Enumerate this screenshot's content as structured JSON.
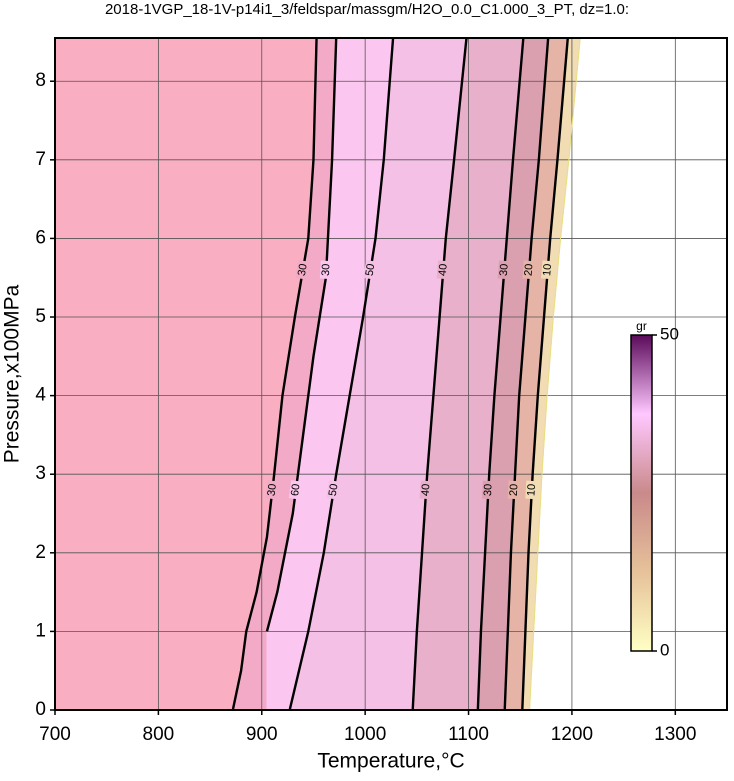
{
  "chart_data": {
    "type": "contour",
    "title": "2018-1VGP_18-1V-p14i1_3/feldspar/massgm/H2O_0.0_C1.000_3_PT, dz=1.0:",
    "xlabel": "Temperature,°C",
    "ylabel": "Pressure,x100MPa",
    "xlim": [
      700,
      1350
    ],
    "ylim": [
      0,
      8.55
    ],
    "xticks": [
      700,
      800,
      900,
      1000,
      1100,
      1200,
      1300
    ],
    "yticks": [
      0,
      1,
      2,
      3,
      4,
      5,
      6,
      7,
      8
    ],
    "grid": true,
    "contours": [
      {
        "labels": [
          30,
          30
        ],
        "T": [
          872,
          880,
          885,
          895,
          905,
          912,
          920,
          932,
          945,
          950,
          953
        ],
        "P": [
          0,
          0.5,
          1.0,
          1.5,
          2.2,
          3,
          4,
          5,
          6,
          7,
          8.55
        ]
      },
      {
        "labels": [
          30,
          60
        ],
        "T": [
          905,
          915,
          930,
          940,
          950,
          962,
          968,
          972
        ],
        "P": [
          1.0,
          1.5,
          2.5,
          3.5,
          4.5,
          5.5,
          7,
          8.55
        ]
      },
      {
        "labels": [
          50,
          50
        ],
        "T": [
          927,
          945,
          960,
          972,
          985,
          998,
          1010,
          1018,
          1027
        ],
        "P": [
          0,
          1,
          2,
          3,
          4,
          5,
          6,
          7,
          8.55
        ]
      },
      {
        "labels": [
          40,
          40
        ],
        "T": [
          1046,
          1050,
          1055,
          1060,
          1066,
          1072,
          1078,
          1086,
          1098
        ],
        "P": [
          0,
          1,
          2,
          3,
          4,
          5,
          6,
          7,
          8.55
        ]
      },
      {
        "labels": [
          30,
          30
        ],
        "T": [
          1109,
          1112,
          1116,
          1120,
          1125,
          1131,
          1137,
          1143,
          1153
        ],
        "P": [
          0,
          1,
          2,
          3,
          4,
          5,
          6,
          7,
          8.55
        ]
      },
      {
        "labels": [
          20,
          20
        ],
        "T": [
          1135,
          1138,
          1141,
          1145,
          1149,
          1155,
          1161,
          1168,
          1177
        ],
        "P": [
          0,
          1,
          2,
          3,
          4,
          5,
          6,
          7,
          8.55
        ]
      },
      {
        "labels": [
          10,
          10
        ],
        "T": [
          1152,
          1155,
          1158,
          1162,
          1167,
          1173,
          1179,
          1186,
          1196
        ],
        "P": [
          0,
          1,
          2,
          3,
          4,
          5,
          6,
          7,
          8.55
        ]
      }
    ],
    "edge": {
      "T": [
        1159,
        1163,
        1167,
        1171,
        1176,
        1182,
        1189,
        1197,
        1208
      ],
      "P": [
        0,
        1,
        2,
        3,
        4,
        5,
        6,
        7,
        8.55
      ]
    },
    "band_colors": [
      "#f9aec1",
      "#f2aac6",
      "#fbc6ef",
      "#f5c0e5",
      "#e8b0ca",
      "#dba0b0",
      "#e6b4a6",
      "#f1dcb4"
    ],
    "colorbar": {
      "label": "gr",
      "lim": [
        0,
        50
      ],
      "ticks": [
        0,
        50
      ],
      "colors": [
        "#ffffc4",
        "#e6c29a",
        "#c98a8a",
        "#ffc8ff",
        "#5a0a5a"
      ]
    }
  }
}
